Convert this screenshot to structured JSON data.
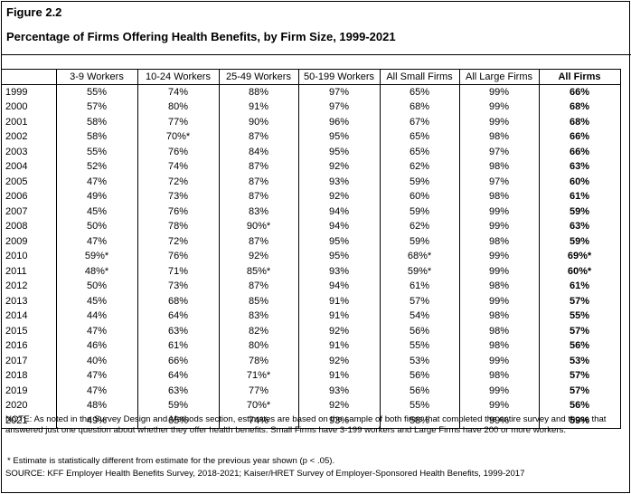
{
  "figure": {
    "label": "Figure 2.2",
    "title": "Percentage of Firms Offering Health Benefits, by Firm Size, 1999-2021"
  },
  "table": {
    "headers": [
      "",
      "3-9 Workers",
      "10-24 Workers",
      "25-49 Workers",
      "50-199 Workers",
      "All Small Firms",
      "All Large Firms",
      "All Firms"
    ],
    "rows": [
      [
        "1999",
        "55%",
        "74%",
        "88%",
        "97%",
        "65%",
        "99%",
        "66%"
      ],
      [
        "2000",
        "57%",
        "80%",
        "91%",
        "97%",
        "68%",
        "99%",
        "68%"
      ],
      [
        "2001",
        "58%",
        "77%",
        "90%",
        "96%",
        "67%",
        "99%",
        "68%"
      ],
      [
        "2002",
        "58%",
        "70%*",
        "87%",
        "95%",
        "65%",
        "98%",
        "66%"
      ],
      [
        "2003",
        "55%",
        "76%",
        "84%",
        "95%",
        "65%",
        "97%",
        "66%"
      ],
      [
        "2004",
        "52%",
        "74%",
        "87%",
        "92%",
        "62%",
        "98%",
        "63%"
      ],
      [
        "2005",
        "47%",
        "72%",
        "87%",
        "93%",
        "59%",
        "97%",
        "60%"
      ],
      [
        "2006",
        "49%",
        "73%",
        "87%",
        "92%",
        "60%",
        "98%",
        "61%"
      ],
      [
        "2007",
        "45%",
        "76%",
        "83%",
        "94%",
        "59%",
        "99%",
        "59%"
      ],
      [
        "2008",
        "50%",
        "78%",
        "90%*",
        "94%",
        "62%",
        "99%",
        "63%"
      ],
      [
        "2009",
        "47%",
        "72%",
        "87%",
        "95%",
        "59%",
        "98%",
        "59%"
      ],
      [
        "2010",
        "59%*",
        "76%",
        "92%",
        "95%",
        "68%*",
        "99%",
        "69%*"
      ],
      [
        "2011",
        "48%*",
        "71%",
        "85%*",
        "93%",
        "59%*",
        "99%",
        "60%*"
      ],
      [
        "2012",
        "50%",
        "73%",
        "87%",
        "94%",
        "61%",
        "98%",
        "61%"
      ],
      [
        "2013",
        "45%",
        "68%",
        "85%",
        "91%",
        "57%",
        "99%",
        "57%"
      ],
      [
        "2014",
        "44%",
        "64%",
        "83%",
        "91%",
        "54%",
        "98%",
        "55%"
      ],
      [
        "2015",
        "47%",
        "63%",
        "82%",
        "92%",
        "56%",
        "98%",
        "57%"
      ],
      [
        "2016",
        "46%",
        "61%",
        "80%",
        "91%",
        "55%",
        "98%",
        "56%"
      ],
      [
        "2017",
        "40%",
        "66%",
        "78%",
        "92%",
        "53%",
        "99%",
        "53%"
      ],
      [
        "2018",
        "47%",
        "64%",
        "71%*",
        "91%",
        "56%",
        "98%",
        "57%"
      ],
      [
        "2019",
        "47%",
        "63%",
        "77%",
        "93%",
        "56%",
        "99%",
        "57%"
      ],
      [
        "2020",
        "48%",
        "59%",
        "70%*",
        "92%",
        "55%",
        "99%",
        "56%"
      ],
      [
        "2021",
        "49%",
        "65%",
        "74%",
        "93%",
        "58%",
        "99%",
        "59%"
      ]
    ]
  },
  "notes": {
    "note": "NOTE: As noted in the Survey Design and Methods section, estimates are based on the sample of both firms that completed the entire survey and those that answered just one question about whether they offer health benefits. Small Firms have 3-199 workers and Large Firms have 200 or more workers.",
    "star": "* Estimate is statistically different from estimate for the previous year shown (p < .05).",
    "source": "SOURCE: KFF Employer Health Benefits Survey, 2018-2021; Kaiser/HRET Survey of Employer-Sponsored Health Benefits, 1999-2017"
  }
}
